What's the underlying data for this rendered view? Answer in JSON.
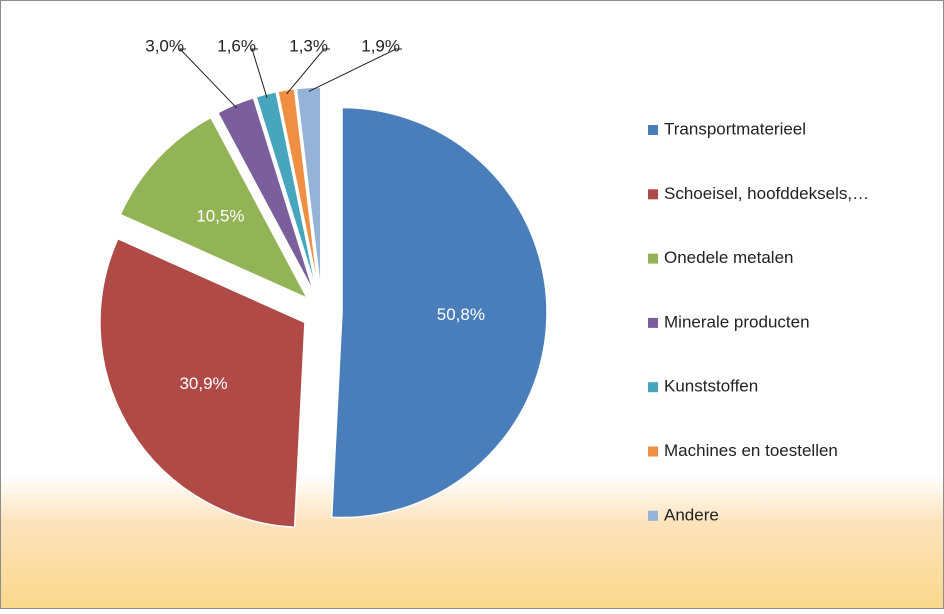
{
  "chart_data": {
    "type": "pie",
    "categories": [
      "Transportmaterieel",
      "Schoeisel, hoofddeksels,…",
      "Onedele metalen",
      "Minerale producten",
      "Kunststoffen",
      "Machines en toestellen",
      "Andere"
    ],
    "values": [
      50.8,
      30.9,
      10.5,
      3.0,
      1.6,
      1.3,
      1.9
    ],
    "value_labels": [
      "50,8%",
      "30,9%",
      "10,5%",
      "3,0%",
      "1,6%",
      "1,3%",
      "1,9%"
    ],
    "colors": [
      "#4a7ebb",
      "#b04a47",
      "#93b456",
      "#7a5f9c",
      "#47a5bd",
      "#ee8f43",
      "#95b3d7"
    ],
    "legend": "right"
  }
}
